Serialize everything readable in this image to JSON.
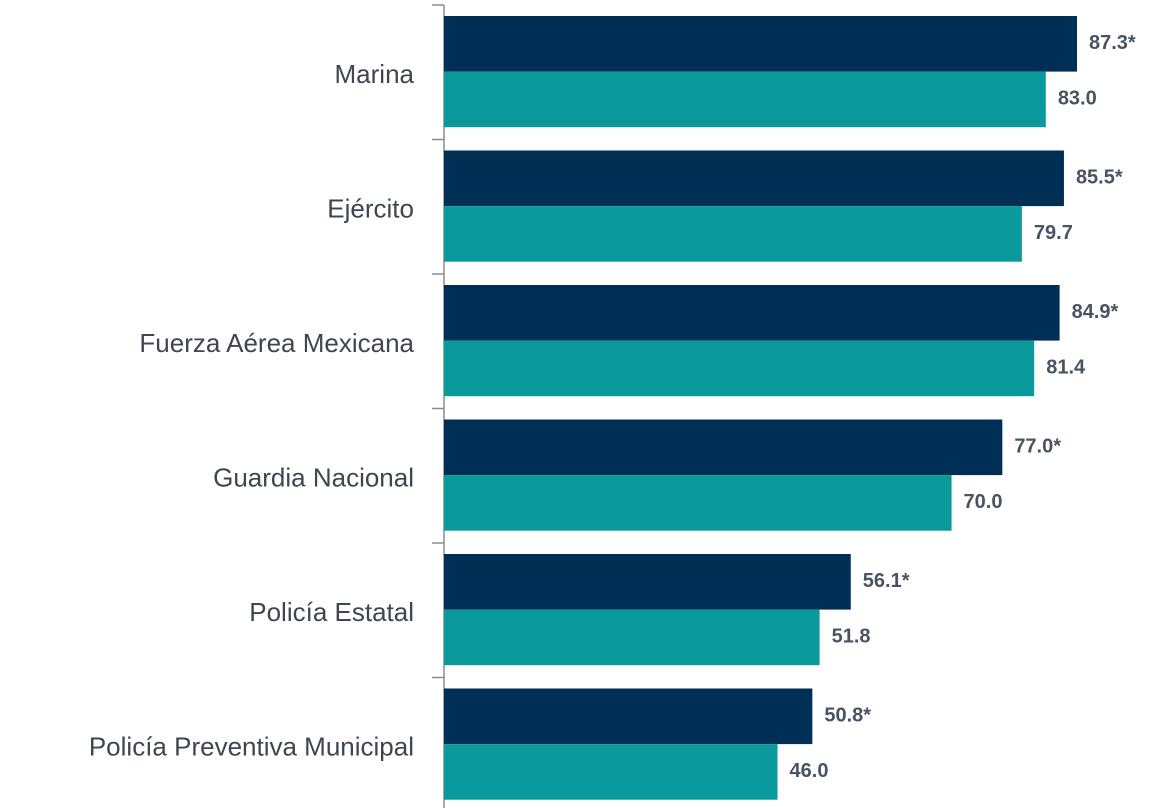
{
  "chart_data": {
    "type": "bar",
    "orientation": "horizontal",
    "categories": [
      "Marina",
      "Ejército",
      "Fuerza Aérea Mexicana",
      "Guardia Nacional",
      "Policía Estatal",
      "Policía Preventiva Municipal"
    ],
    "series": [
      {
        "color": "#002f56",
        "values": [
          87.3,
          85.5,
          84.9,
          77.0,
          56.1,
          50.8
        ],
        "value_labels": [
          "87.3*",
          "85.5*",
          "84.9*",
          "77.0*",
          "56.1*",
          "50.8*"
        ]
      },
      {
        "color": "#0a9a9c",
        "values": [
          83.0,
          79.7,
          81.4,
          70.0,
          51.8,
          46.0
        ],
        "value_labels": [
          "83.0",
          "79.7",
          "81.4",
          "70.0",
          "51.8",
          "46.0"
        ]
      }
    ]
  }
}
